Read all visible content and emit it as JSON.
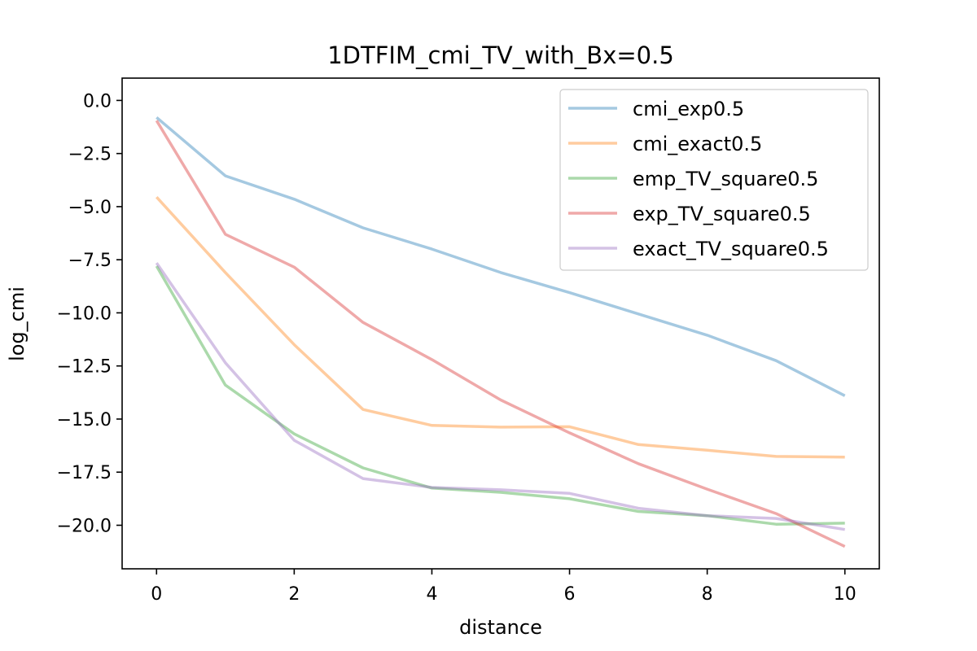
{
  "chart_data": {
    "type": "line",
    "title": "1DTFIM_cmi_TV_with_Bx=0.5",
    "xlabel": "distance",
    "ylabel": "log_cmi",
    "xlim": [
      -0.5,
      10.5
    ],
    "ylim": [
      -21.0,
      0.0
    ],
    "x_ticks": [
      0,
      2,
      4,
      6,
      8,
      10
    ],
    "x_tick_labels": [
      "0",
      "2",
      "4",
      "6",
      "8",
      "10"
    ],
    "y_ticks": [
      0.0,
      -2.5,
      -5.0,
      -7.5,
      -10.0,
      -12.5,
      -15.0,
      -17.5,
      -20.0
    ],
    "y_tick_labels": [
      "0.0",
      "−2.5",
      "−5.0",
      "−7.5",
      "−10.0",
      "−12.5",
      "−15.0",
      "−17.5",
      "−20.0"
    ],
    "grid": false,
    "legend_position": "top-right",
    "x": [
      0,
      1,
      2,
      3,
      4,
      5,
      6,
      7,
      8,
      9,
      10
    ],
    "series": [
      {
        "name": "cmi_exp0.5",
        "color": "#1f77b4",
        "values": [
          -0.8,
          -3.55,
          -4.65,
          -6.0,
          -7.0,
          -8.1,
          -9.05,
          -10.05,
          -11.05,
          -12.25,
          -13.9
        ]
      },
      {
        "name": "cmi_exact0.5",
        "color": "#ff7f0e",
        "values": [
          -4.55,
          -8.1,
          -11.5,
          -14.55,
          -15.3,
          -15.38,
          -15.36,
          -16.2,
          -16.47,
          -16.76,
          -16.79
        ]
      },
      {
        "name": "emp_TV_square0.5",
        "color": "#2ca02c",
        "values": [
          -7.8,
          -13.4,
          -15.7,
          -17.3,
          -18.25,
          -18.45,
          -18.75,
          -19.35,
          -19.55,
          -19.95,
          -19.9
        ]
      },
      {
        "name": "exp_TV_square0.5",
        "color": "#d62728",
        "values": [
          -0.95,
          -6.3,
          -7.85,
          -10.45,
          -12.2,
          -14.1,
          -15.65,
          -17.1,
          -18.3,
          -19.45,
          -21.0
        ]
      },
      {
        "name": "exact_TV_square0.5",
        "color": "#9467bd",
        "values": [
          -7.65,
          -12.35,
          -16.0,
          -17.8,
          -18.22,
          -18.33,
          -18.5,
          -19.2,
          -19.55,
          -19.68,
          -20.2
        ]
      }
    ]
  }
}
